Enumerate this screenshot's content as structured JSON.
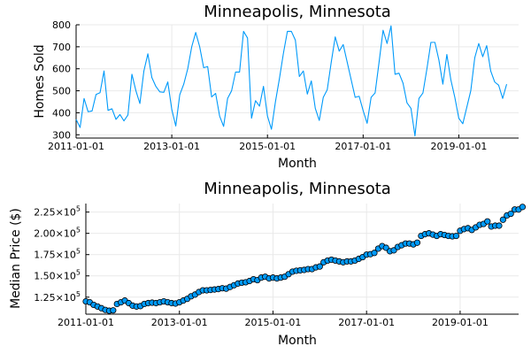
{
  "chart_data": [
    {
      "type": "line",
      "title": "Minneapolis, Minnesota",
      "xlabel": "Month",
      "ylabel": "Homes Sold",
      "xlim": [
        "2011-01-01",
        "2020-04-01"
      ],
      "ylim": [
        285,
        800
      ],
      "xticks": [
        "2011-01-01",
        "2013-01-01",
        "2015-01-01",
        "2017-01-01",
        "2019-01-01"
      ],
      "yticks": [
        300,
        400,
        500,
        600,
        700,
        800
      ],
      "grid": true,
      "series_color": "#009AFA",
      "x_start": "2011-01-01",
      "x_step": "1 month",
      "values": [
        370,
        333,
        465,
        405,
        408,
        483,
        491,
        590,
        411,
        418,
        370,
        392,
        363,
        390,
        575,
        500,
        442,
        590,
        668,
        560,
        520,
        495,
        493,
        540,
        415,
        340,
        482,
        530,
        600,
        700,
        765,
        700,
        605,
        610,
        472,
        488,
        385,
        338,
        465,
        500,
        585,
        585,
        770,
        740,
        375,
        455,
        430,
        520,
        385,
        325,
        450,
        555,
        670,
        770,
        770,
        730,
        565,
        590,
        485,
        545,
        420,
        365,
        470,
        505,
        630,
        745,
        680,
        710,
        630,
        550,
        470,
        475,
        410,
        352,
        470,
        490,
        630,
        775,
        715,
        795,
        575,
        580,
        535,
        445,
        420,
        295,
        465,
        490,
        600,
        720,
        720,
        640,
        530,
        665,
        550,
        470,
        375,
        350,
        425,
        500,
        650,
        715,
        655,
        705,
        590,
        540,
        525,
        465,
        530
      ]
    },
    {
      "type": "scatter",
      "title": "Minneapolis, Minnesota",
      "xlabel": "Month",
      "ylabel": "Median Price ($)",
      "xlim": [
        "2011-01-01",
        "2020-04-01"
      ],
      "ylim": [
        105000,
        235000
      ],
      "xticks": [
        "2011-01-01",
        "2013-01-01",
        "2015-01-01",
        "2017-01-01",
        "2019-01-01"
      ],
      "yticks": [
        125000,
        150000,
        175000,
        200000,
        225000
      ],
      "ytick_labels": [
        {
          "mantissa": "1.25×10",
          "exp": "5"
        },
        {
          "mantissa": "1.50×10",
          "exp": "5"
        },
        {
          "mantissa": "1.75×10",
          "exp": "5"
        },
        {
          "mantissa": "2.00×10",
          "exp": "5"
        },
        {
          "mantissa": "2.25×10",
          "exp": "5"
        }
      ],
      "grid": true,
      "series_color": "#009AFA",
      "x_start": "2011-01-01",
      "x_step": "1 month",
      "values": [
        120000,
        119000,
        116000,
        114000,
        112000,
        110000,
        109000,
        109500,
        117000,
        119000,
        121000,
        118000,
        115000,
        114000,
        114500,
        117000,
        118000,
        118500,
        118000,
        119000,
        120000,
        119000,
        118000,
        117500,
        119000,
        121000,
        123000,
        126000,
        128000,
        131000,
        133000,
        133000,
        133500,
        134000,
        134500,
        135500,
        135000,
        137000,
        139000,
        141000,
        142000,
        142500,
        144000,
        146000,
        145000,
        148000,
        149000,
        147000,
        148000,
        147000,
        148000,
        149000,
        152000,
        155000,
        156000,
        156500,
        157000,
        158000,
        158000,
        160000,
        161000,
        166000,
        168000,
        169000,
        168000,
        167000,
        166000,
        167000,
        167000,
        168000,
        170000,
        172000,
        175000,
        175500,
        177000,
        182000,
        185000,
        183000,
        179000,
        180000,
        184000,
        186000,
        188000,
        188000,
        187000,
        189000,
        197000,
        199000,
        200000,
        198500,
        197000,
        199000,
        198000,
        197000,
        196500,
        197000,
        203000,
        205000,
        206000,
        204000,
        207000,
        210000,
        211000,
        214000,
        208000,
        209000,
        209000,
        216000,
        221000,
        223000,
        228000,
        228000,
        231000
      ]
    }
  ]
}
